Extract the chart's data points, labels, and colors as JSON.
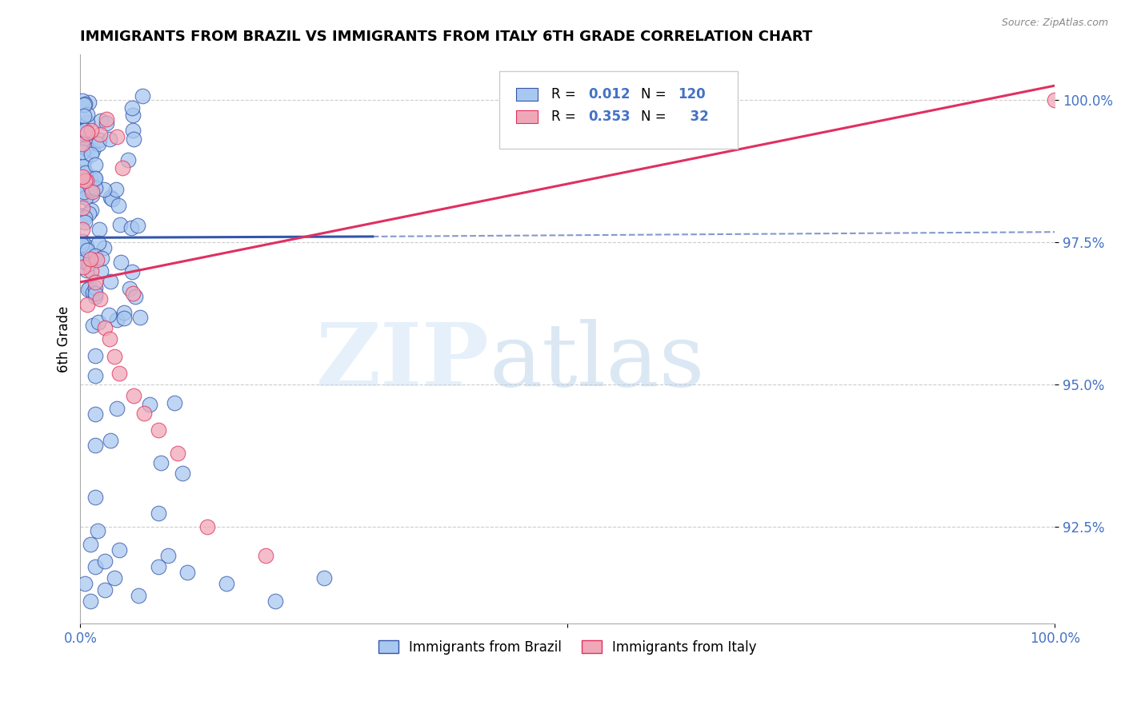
{
  "title": "IMMIGRANTS FROM BRAZIL VS IMMIGRANTS FROM ITALY 6TH GRADE CORRELATION CHART",
  "source": "Source: ZipAtlas.com",
  "ylabel": "6th Grade",
  "ytick_labels": [
    "92.5%",
    "95.0%",
    "97.5%",
    "100.0%"
  ],
  "ytick_values": [
    0.925,
    0.95,
    0.975,
    1.0
  ],
  "xlim": [
    0.0,
    1.0
  ],
  "ylim": [
    0.908,
    1.008
  ],
  "color_brazil": "#a8c8f0",
  "color_italy": "#f0a8b8",
  "line_brazil": "#3355aa",
  "line_italy": "#e03060",
  "legend_r_brazil": "0.012",
  "legend_n_brazil": "120",
  "legend_r_italy": "0.353",
  "legend_n_italy": "32"
}
